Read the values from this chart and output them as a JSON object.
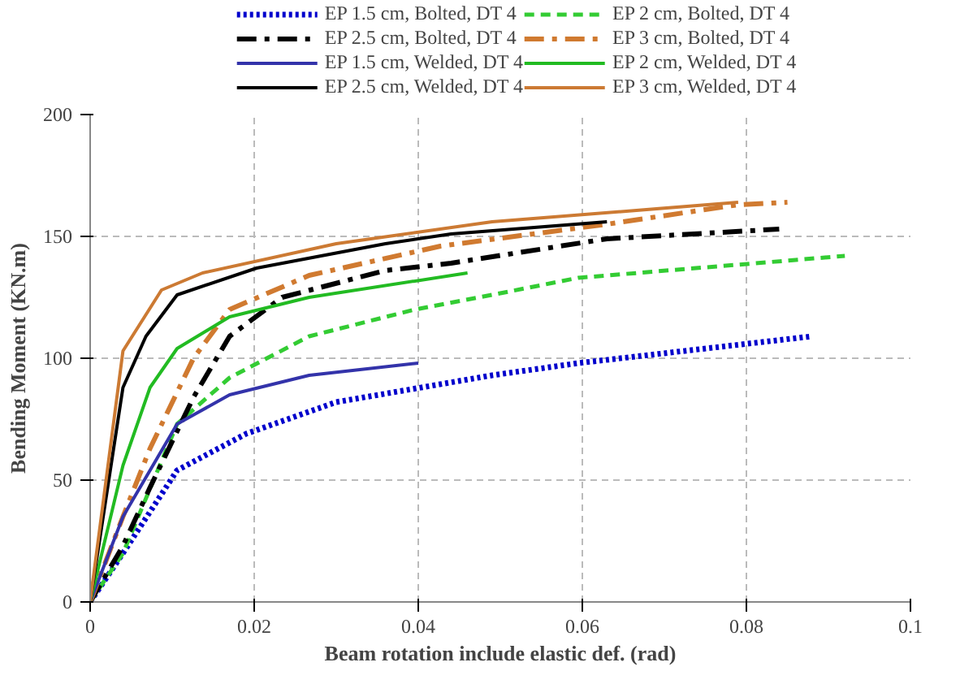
{
  "chart_data": {
    "type": "line",
    "xlabel": "Beam rotation include elastic def. (rad)",
    "ylabel": "Bending Moment (KN.m)",
    "xlim": [
      0,
      0.1
    ],
    "ylim": [
      0,
      200
    ],
    "xticks": [
      0,
      0.02,
      0.04,
      0.06,
      0.08,
      0.1
    ],
    "yticks": [
      0,
      50,
      100,
      150,
      200
    ],
    "grid": true,
    "legend": "top",
    "marker": "none",
    "series": [
      {
        "name": "EP 1.5 cm, Bolted, DT 4",
        "color": "#0000cc",
        "line_style": "dotted",
        "x": [
          0,
          0.004,
          0.0106,
          0.019,
          0.03,
          0.049,
          0.0595,
          0.088
        ],
        "values": [
          0,
          20,
          54,
          69,
          82,
          93,
          98,
          109
        ]
      },
      {
        "name": "EP 2 cm, Bolted, DT 4",
        "color": "#33cc33",
        "line_style": "dashed",
        "x": [
          0,
          0.004,
          0.0106,
          0.017,
          0.0267,
          0.0396,
          0.049,
          0.0595,
          0.092
        ],
        "values": [
          0,
          20,
          73,
          92,
          109,
          120,
          126,
          133,
          142
        ]
      },
      {
        "name": "EP 2.5 cm, Bolted, DT 4",
        "color": "#000000",
        "line_style": "dashdot",
        "x": [
          0,
          0.004,
          0.0073,
          0.0126,
          0.017,
          0.0234,
          0.036,
          0.044,
          0.063,
          0.084
        ],
        "values": [
          0,
          23,
          47,
          84,
          109,
          125,
          136,
          139,
          149,
          153
        ]
      },
      {
        "name": "EP 3 cm, Bolted, DT 4",
        "color": "#d07a30",
        "line_style": "dashdot",
        "x": [
          0,
          0.004,
          0.0073,
          0.0126,
          0.017,
          0.0267,
          0.0427,
          0.063,
          0.079,
          0.085
        ],
        "values": [
          0,
          35,
          63,
          100,
          120,
          134,
          146,
          155,
          163,
          164
        ]
      },
      {
        "name": "EP 1.5 cm, Welded, DT 4",
        "color": "#3333aa",
        "line_style": "solid",
        "x": [
          0,
          0.004,
          0.0106,
          0.017,
          0.0267,
          0.04
        ],
        "values": [
          0,
          35,
          73,
          85,
          93,
          98
        ]
      },
      {
        "name": "EP 2 cm, Welded, DT 4",
        "color": "#22bb22",
        "line_style": "solid",
        "x": [
          0,
          0.004,
          0.0073,
          0.0106,
          0.017,
          0.0267,
          0.046
        ],
        "values": [
          0,
          56,
          88,
          104,
          117,
          125,
          135
        ]
      },
      {
        "name": "EP 2.5 cm, Welded, DT 4",
        "color": "#000000",
        "line_style": "solid",
        "x": [
          0,
          0.004,
          0.0068,
          0.0106,
          0.0203,
          0.036,
          0.044,
          0.063
        ],
        "values": [
          0,
          88,
          109,
          126,
          137,
          147,
          151,
          156
        ]
      },
      {
        "name": "EP 3 cm, Welded, DT 4",
        "color": "#cc7a33",
        "line_style": "solid",
        "x": [
          0,
          0.004,
          0.0087,
          0.0137,
          0.03,
          0.049,
          0.079
        ],
        "values": [
          0,
          103,
          128,
          135,
          147,
          156,
          164
        ]
      }
    ]
  }
}
